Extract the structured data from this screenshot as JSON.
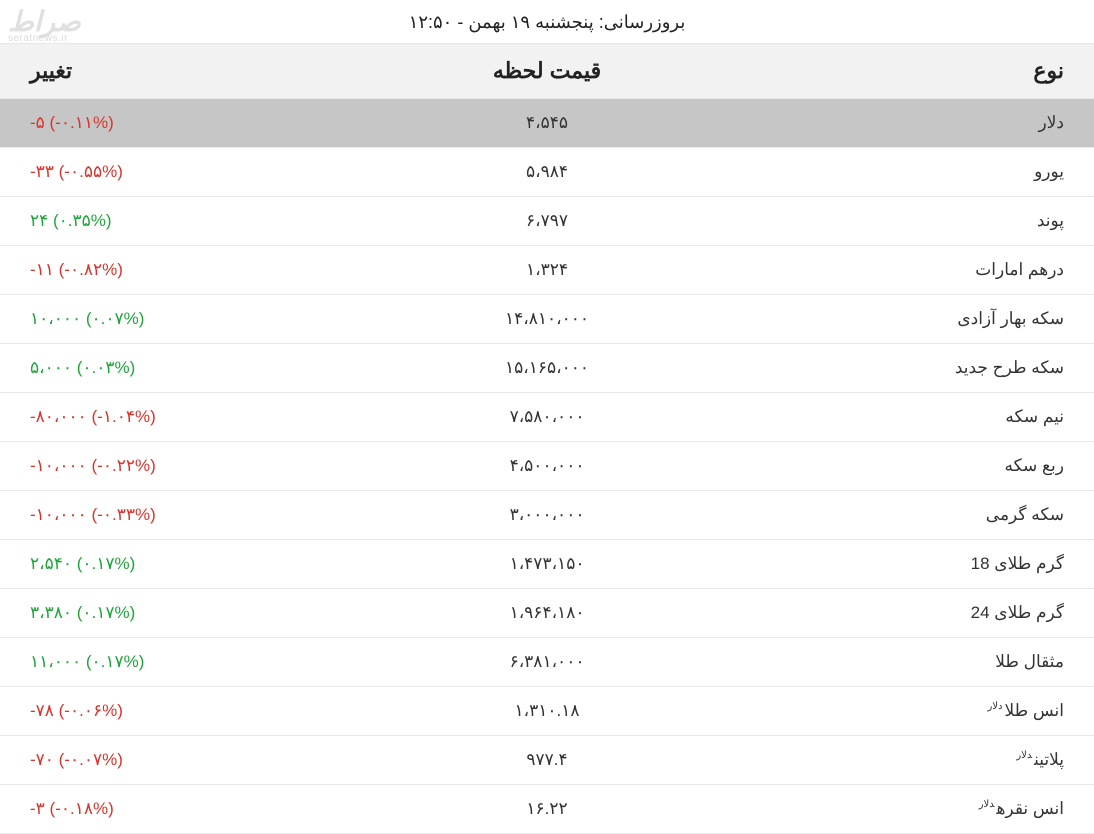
{
  "watermark": {
    "brand": "صراط",
    "site": "seratnews.ir"
  },
  "update_text": "بروزرسانی: پنجشنبه ۱۹ بهمن - ۱۲:۵۰",
  "columns": {
    "type": "نوع",
    "price": "قیمت لحظه",
    "change": "تغییر"
  },
  "superscript_usd": "دلار",
  "colors": {
    "header_bg": "#f2f2f2",
    "highlight_bg": "#c6c6c6",
    "border": "#e9e9e9",
    "down": "#d9342b",
    "up": "#1fa63a",
    "text": "#333333"
  },
  "rows": [
    {
      "type": "دلار",
      "usd_sup": false,
      "price": "۴،۵۴۵",
      "change": "-۵ (-۰.۱۱%)",
      "dir": "down",
      "highlight": true
    },
    {
      "type": "یورو",
      "usd_sup": false,
      "price": "۵،۹۸۴",
      "change": "-۳۳ (-۰.۵۵%)",
      "dir": "down",
      "highlight": false
    },
    {
      "type": "پوند",
      "usd_sup": false,
      "price": "۶،۷۹۷",
      "change": "۲۴ (۰.۳۵%)",
      "dir": "up",
      "highlight": false
    },
    {
      "type": "درهم امارات",
      "usd_sup": false,
      "price": "۱،۳۲۴",
      "change": "-۱۱ (-۰.۸۲%)",
      "dir": "down",
      "highlight": false
    },
    {
      "type": "سکه بهار آزادی",
      "usd_sup": false,
      "price": "۱۴،۸۱۰،۰۰۰",
      "change": "۱۰،۰۰۰ (۰.۰۷%)",
      "dir": "up",
      "highlight": false
    },
    {
      "type": "سکه طرح جدید",
      "usd_sup": false,
      "price": "۱۵،۱۶۵،۰۰۰",
      "change": "۵،۰۰۰ (۰.۰۳%)",
      "dir": "up",
      "highlight": false
    },
    {
      "type": "نیم سکه",
      "usd_sup": false,
      "price": "۷،۵۸۰،۰۰۰",
      "change": "-۸۰،۰۰۰ (-۱.۰۴%)",
      "dir": "down",
      "highlight": false
    },
    {
      "type": "ربع سکه",
      "usd_sup": false,
      "price": "۴،۵۰۰،۰۰۰",
      "change": "-۱۰،۰۰۰ (-۰.۲۲%)",
      "dir": "down",
      "highlight": false
    },
    {
      "type": "سکه گرمی",
      "usd_sup": false,
      "price": "۳،۰۰۰،۰۰۰",
      "change": "-۱۰،۰۰۰ (-۰.۳۳%)",
      "dir": "down",
      "highlight": false
    },
    {
      "type": "گرم طلای 18",
      "usd_sup": false,
      "price": "۱،۴۷۳،۱۵۰",
      "change": "۲،۵۴۰ (۰.۱۷%)",
      "dir": "up",
      "highlight": false
    },
    {
      "type": "گرم طلای 24",
      "usd_sup": false,
      "price": "۱،۹۶۴،۱۸۰",
      "change": "۳،۳۸۰ (۰.۱۷%)",
      "dir": "up",
      "highlight": false
    },
    {
      "type": "مثقال طلا",
      "usd_sup": false,
      "price": "۶،۳۸۱،۰۰۰",
      "change": "۱۱،۰۰۰ (۰.۱۷%)",
      "dir": "up",
      "highlight": false
    },
    {
      "type": "انس طلا",
      "usd_sup": true,
      "price": "۱،۳۱۰.۱۸",
      "change": "-۷۸ (-۰.۰۶%)",
      "dir": "down",
      "highlight": false
    },
    {
      "type": "پلاتین",
      "usd_sup": true,
      "price": "۹۷۷.۴",
      "change": "-۷۰ (-۰.۰۷%)",
      "dir": "down",
      "highlight": false
    },
    {
      "type": "انس نقره",
      "usd_sup": true,
      "price": "۱۶.۲۲",
      "change": "-۳ (-۰.۱۸%)",
      "dir": "down",
      "highlight": false
    }
  ]
}
